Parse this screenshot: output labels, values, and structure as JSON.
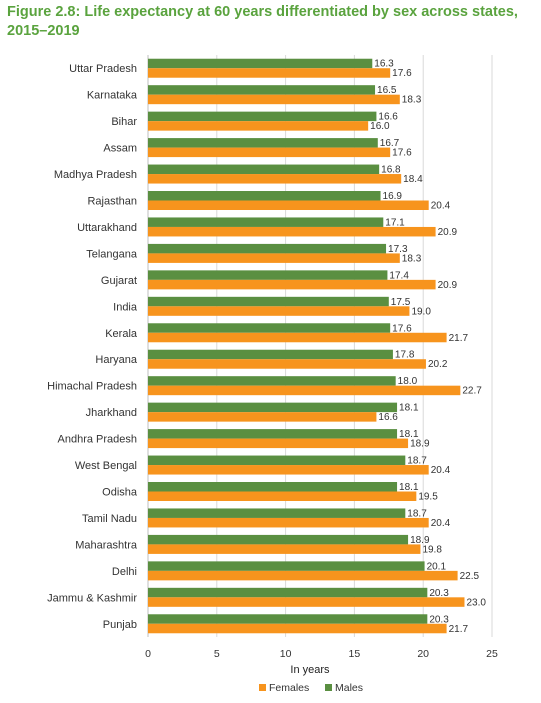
{
  "chart_data": {
    "type": "bar",
    "orientation": "horizontal",
    "title": "Figure 2.8: Life expectancy at 60 years differentiated by sex across states, 2015–2019",
    "xlabel": "In years",
    "xlim": [
      0,
      25
    ],
    "xticks": [
      0,
      5,
      10,
      15,
      20,
      25
    ],
    "grid": true,
    "legend_position": "bottom",
    "categories": [
      "Uttar Pradesh",
      "Karnataka",
      "Bihar",
      "Assam",
      "Madhya Pradesh",
      "Rajasthan",
      "Uttarakhand",
      "Telangana",
      "Gujarat",
      "India",
      "Kerala",
      "Haryana",
      "Himachal Pradesh",
      "Jharkhand",
      "Andhra Pradesh",
      "West Bengal",
      "Odisha",
      "Tamil Nadu",
      "Maharashtra",
      "Delhi",
      "Jammu & Kashmir",
      "Punjab"
    ],
    "series": [
      {
        "name": "Males",
        "color": "#5a8f41",
        "values": [
          16.3,
          16.5,
          16.6,
          16.7,
          16.8,
          16.9,
          17.1,
          17.3,
          17.4,
          17.5,
          17.6,
          17.8,
          18.0,
          18.1,
          18.1,
          18.7,
          18.1,
          18.7,
          18.9,
          20.1,
          20.3,
          20.3
        ]
      },
      {
        "name": "Females",
        "color": "#f7941d",
        "values": [
          17.6,
          18.3,
          16.0,
          17.6,
          18.4,
          20.4,
          20.9,
          18.3,
          20.9,
          19.0,
          21.7,
          20.2,
          22.7,
          16.6,
          18.9,
          20.4,
          19.5,
          20.4,
          19.8,
          22.5,
          23.0,
          21.7
        ]
      }
    ],
    "legend": [
      "Females",
      "Males"
    ]
  }
}
